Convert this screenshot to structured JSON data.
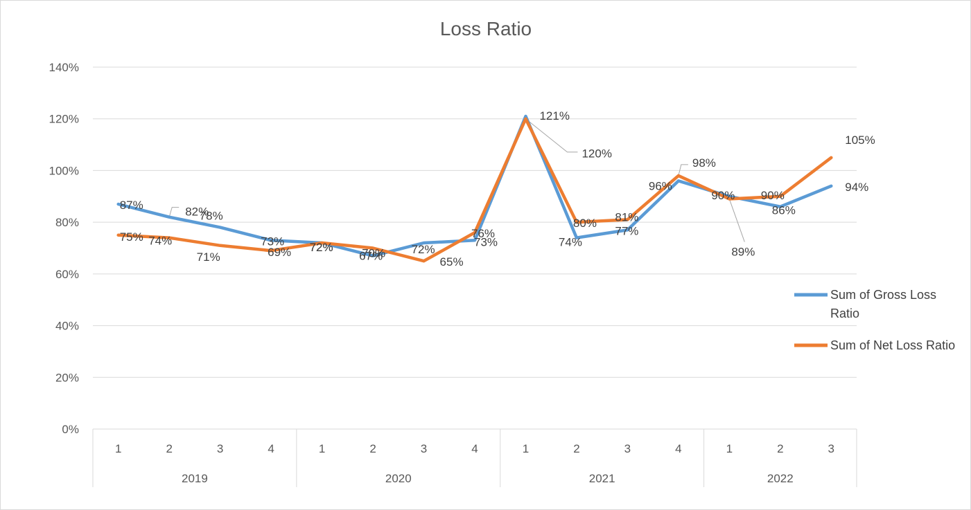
{
  "chart_data": {
    "type": "line",
    "title": "Loss Ratio",
    "xlabel": "",
    "ylabel": "",
    "ylim": [
      0,
      140
    ],
    "y_ticks": [
      "0%",
      "20%",
      "40%",
      "60%",
      "80%",
      "100%",
      "120%",
      "140%"
    ],
    "grid": true,
    "legend_position": "right",
    "categories": [
      "1",
      "2",
      "3",
      "4",
      "1",
      "2",
      "3",
      "4",
      "1",
      "2",
      "3",
      "4",
      "1",
      "2",
      "3"
    ],
    "groups": [
      {
        "label": "2019",
        "count": 4
      },
      {
        "label": "2020",
        "count": 4
      },
      {
        "label": "2021",
        "count": 4
      },
      {
        "label": "2022",
        "count": 3
      }
    ],
    "series": [
      {
        "name": "Sum of Gross Loss Ratio",
        "color": "#5b9bd5",
        "values": [
          87,
          82,
          78,
          73,
          72,
          67,
          72,
          73,
          121,
          74,
          77,
          96,
          90,
          86,
          94
        ],
        "labels": [
          "87%",
          "82%",
          "78%",
          "73%",
          "72%",
          "67%",
          "72%",
          "73%",
          "121%",
          "74%",
          "77%",
          "96%",
          "90%",
          "86%",
          "94%"
        ]
      },
      {
        "name": "Sum of Net Loss Ratio",
        "color": "#ed7d31",
        "values": [
          75,
          74,
          71,
          69,
          72,
          70,
          65,
          76,
          120,
          80,
          81,
          98,
          89,
          90,
          105
        ],
        "labels": [
          "75%",
          "74%",
          "71%",
          "69%",
          "72%",
          "70%",
          "65%",
          "76%",
          "120%",
          "80%",
          "81%",
          "98%",
          "89%",
          "90%",
          "105%"
        ]
      }
    ]
  },
  "legend": {
    "gross_line1": "Sum of Gross Loss",
    "gross_line2": "Ratio",
    "net": "Sum of Net Loss Ratio"
  }
}
